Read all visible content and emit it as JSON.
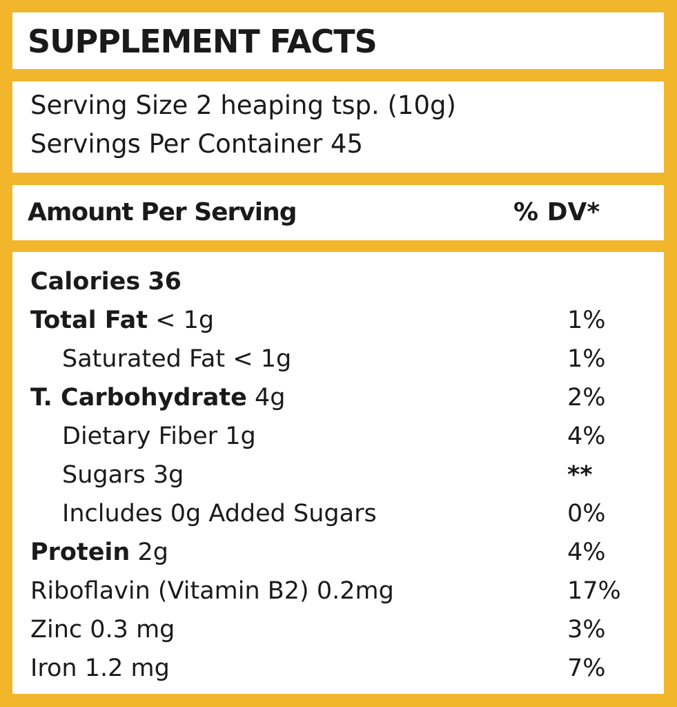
{
  "header": {
    "title": "SUPPLEMENT FACTS"
  },
  "serving": {
    "size": "Serving Size 2 heaping tsp. (10g)",
    "per_container": "Servings Per Container 45"
  },
  "table": {
    "header": {
      "amount": "Amount Per Serving",
      "dv": "% DV*"
    },
    "rows": [
      {
        "label": "Calories",
        "amount": "36"
      },
      {
        "label": "Total Fat",
        "amount": "< 1g",
        "dv": "1%"
      },
      {
        "label": "Saturated Fat",
        "amount": "< 1g",
        "dv": "1%"
      },
      {
        "label": "T. Carbohydrate",
        "amount": "4g",
        "dv": "2%"
      },
      {
        "label": "Dietary Fiber",
        "amount": "1g",
        "dv": "4%"
      },
      {
        "label": "Sugars",
        "amount": "3g",
        "dv": "**"
      },
      {
        "label": "Includes 0g Added Sugars",
        "dv": "0%"
      },
      {
        "label": "Protein",
        "amount": "2g",
        "dv": "4%"
      },
      {
        "label": "Riboflavin (Vitamin B2)",
        "amount": "0.2mg",
        "dv": "17%"
      },
      {
        "label": "Zinc",
        "amount": "0.3 mg",
        "dv": "3%"
      },
      {
        "label": "Iron",
        "amount": "1.2 mg",
        "dv": "7%"
      }
    ]
  }
}
